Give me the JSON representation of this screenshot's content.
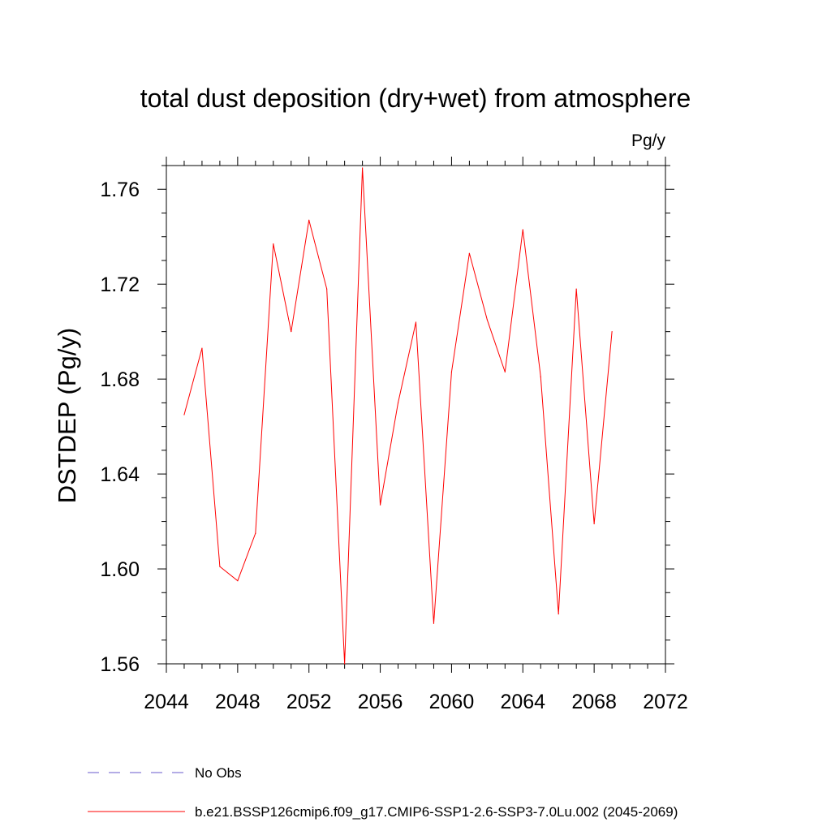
{
  "chart_data": {
    "type": "line",
    "title": "total dust deposition (dry+wet) from atmosphere",
    "units_label": "Pg/y",
    "ylabel": "DSTDEP  (Pg/y)",
    "xlabel": "",
    "xlim": [
      2044,
      2072
    ],
    "ylim": [
      1.56,
      1.77
    ],
    "xticks": [
      2044,
      2048,
      2052,
      2056,
      2060,
      2064,
      2068,
      2072
    ],
    "xtick_labels": [
      "2044",
      "2048",
      "2052",
      "2056",
      "2060",
      "2064",
      "2068",
      "2072"
    ],
    "yticks": [
      1.56,
      1.6,
      1.64,
      1.68,
      1.72,
      1.76
    ],
    "ytick_labels": [
      "1.56",
      "1.60",
      "1.64",
      "1.68",
      "1.72",
      "1.76"
    ],
    "grid": false,
    "legend_position": "bottom",
    "series": [
      {
        "name": "No Obs",
        "color": "#6a5acd",
        "style": "dashed",
        "x": [],
        "values": []
      },
      {
        "name": "b.e21.BSSP126cmip6.f09_g17.CMIP6-SSP1-2.6-SSP3-7.0Lu.002 (2045-2069)",
        "color": "#ff0000",
        "style": "solid",
        "x": [
          2045,
          2046,
          2047,
          2048,
          2049,
          2050,
          2051,
          2052,
          2053,
          2054,
          2055,
          2056,
          2057,
          2058,
          2059,
          2060,
          2061,
          2062,
          2063,
          2064,
          2065,
          2066,
          2067,
          2068,
          2069
        ],
        "values": [
          1.665,
          1.693,
          1.601,
          1.595,
          1.615,
          1.737,
          1.7,
          1.747,
          1.718,
          1.56,
          1.769,
          1.627,
          1.67,
          1.704,
          1.577,
          1.683,
          1.733,
          1.705,
          1.683,
          1.743,
          1.681,
          1.581,
          1.718,
          1.619,
          1.7
        ]
      }
    ]
  }
}
